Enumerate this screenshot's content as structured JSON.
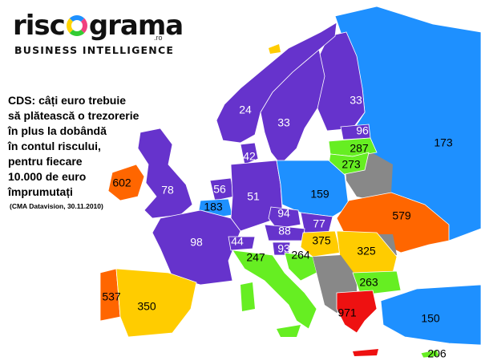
{
  "logo": {
    "word_left": "risc",
    "word_right": "grama",
    "domain": ".ro",
    "tagline": "BUSINESS INTELLIGENCE"
  },
  "caption": {
    "lines": [
      "CDS: câți euro trebuie",
      "să plătească o trezorerie",
      "în plus la dobândă",
      "în contul riscului,",
      "pentru fiecare",
      "10.000 de euro",
      "împrumutați"
    ],
    "source": "(CMA Datavision, 30.11.2010)"
  },
  "legend_colors": {
    "violet": "#6633cc",
    "blue": "#1e90ff",
    "green": "#66ee22",
    "yellow": "#ffcc00",
    "orange": "#ff6600",
    "red": "#ee1111",
    "gray": "#888888"
  },
  "regions": [
    {
      "name": "norway",
      "value": "24",
      "color": "#6633cc",
      "label_color": "#ffffff"
    },
    {
      "name": "sweden",
      "value": "33",
      "color": "#6633cc",
      "label_color": "#ffffff"
    },
    {
      "name": "finland",
      "value": "33",
      "color": "#6633cc",
      "label_color": "#ffffff"
    },
    {
      "name": "denmark",
      "value": "42",
      "color": "#6633cc",
      "label_color": "#ffffff"
    },
    {
      "name": "estonia",
      "value": "96",
      "color": "#6633cc",
      "label_color": "#ffffff"
    },
    {
      "name": "latvia",
      "value": "287",
      "color": "#66ee22",
      "label_color": "#000000"
    },
    {
      "name": "lithuania",
      "value": "273",
      "color": "#66ee22",
      "label_color": "#000000"
    },
    {
      "name": "ireland",
      "value": "602",
      "color": "#ff6600",
      "label_color": "#000000"
    },
    {
      "name": "united-kingdom",
      "value": "78",
      "color": "#6633cc",
      "label_color": "#ffffff"
    },
    {
      "name": "netherlands",
      "value": "56",
      "color": "#6633cc",
      "label_color": "#ffffff"
    },
    {
      "name": "belgium",
      "value": "183",
      "color": "#1e90ff",
      "label_color": "#000000"
    },
    {
      "name": "germany",
      "value": "51",
      "color": "#6633cc",
      "label_color": "#ffffff"
    },
    {
      "name": "poland",
      "value": "159",
      "color": "#1e90ff",
      "label_color": "#000000"
    },
    {
      "name": "czech-republic",
      "value": "94",
      "color": "#6633cc",
      "label_color": "#ffffff"
    },
    {
      "name": "slovakia",
      "value": "77",
      "color": "#6633cc",
      "label_color": "#ffffff"
    },
    {
      "name": "austria",
      "value": "88",
      "color": "#6633cc",
      "label_color": "#ffffff"
    },
    {
      "name": "france",
      "value": "98",
      "color": "#6633cc",
      "label_color": "#ffffff"
    },
    {
      "name": "switzerland",
      "value": "44",
      "color": "#6633cc",
      "label_color": "#ffffff"
    },
    {
      "name": "slovenia",
      "value": "93",
      "color": "#6633cc",
      "label_color": "#ffffff"
    },
    {
      "name": "hungary",
      "value": "375",
      "color": "#ffcc00",
      "label_color": "#000000"
    },
    {
      "name": "ukraine",
      "value": "579",
      "color": "#ff6600",
      "label_color": "#000000"
    },
    {
      "name": "romania",
      "value": "325",
      "color": "#ffcc00",
      "label_color": "#000000"
    },
    {
      "name": "italy",
      "value": "247",
      "color": "#66ee22",
      "label_color": "#000000"
    },
    {
      "name": "croatia",
      "value": "264",
      "color": "#66ee22",
      "label_color": "#000000"
    },
    {
      "name": "bulgaria",
      "value": "263",
      "color": "#66ee22",
      "label_color": "#000000"
    },
    {
      "name": "portugal",
      "value": "537",
      "color": "#ff6600",
      "label_color": "#000000"
    },
    {
      "name": "spain",
      "value": "350",
      "color": "#ffcc00",
      "label_color": "#000000"
    },
    {
      "name": "greece",
      "value": "971",
      "color": "#ee1111",
      "label_color": "#000000"
    },
    {
      "name": "russia",
      "value": "173",
      "color": "#1e90ff",
      "label_color": "#000000"
    },
    {
      "name": "turkey",
      "value": "150",
      "color": "#1e90ff",
      "label_color": "#000000"
    },
    {
      "name": "cyprus",
      "value": "206",
      "color": "#66ee22",
      "label_color": "#000000"
    }
  ]
}
